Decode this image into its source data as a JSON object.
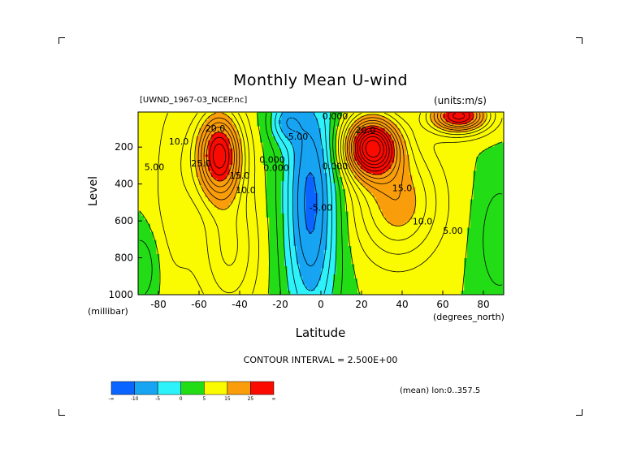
{
  "title": "Monthly Mean U-wind",
  "dataset": "[UWND_1967-03_NCEP.nc]",
  "units": "(units:m/s)",
  "contour_interval": "CONTOUR INTERVAL = 2.500E+00",
  "mean_label": "(mean) lon:0..357.5",
  "chart_data": {
    "type": "contour",
    "title": "Monthly Mean U-wind",
    "xlabel": "Latitude",
    "xunit": "(degrees_north)",
    "ylabel": "Level",
    "yunit": "(millibar)",
    "xlim": [
      -90,
      90
    ],
    "ylim": [
      1000,
      10
    ],
    "xticks": [
      -80,
      -60,
      -40,
      -20,
      0,
      20,
      40,
      60,
      80
    ],
    "yticks": [
      200,
      400,
      600,
      800,
      1000
    ],
    "contour_interval": 2.5,
    "color_levels": [
      -10,
      -5,
      0,
      5,
      15,
      25
    ],
    "colors": [
      "#0a64ff",
      "#17a4f2",
      "#2ef2fa",
      "#22dc16",
      "#fafa00",
      "#fa9d0a",
      "#fa0a00"
    ],
    "colorbar_labels": [
      "-∞",
      "-10",
      "-5",
      "0",
      "5",
      "15",
      "25",
      "∞"
    ],
    "contour_labels": [
      {
        "text": "20.0",
        "x": -52,
        "y": 115
      },
      {
        "text": "10.0",
        "x": -70,
        "y": 185
      },
      {
        "text": "5.00",
        "x": -82,
        "y": 325
      },
      {
        "text": "25.0",
        "x": -59,
        "y": 305
      },
      {
        "text": "15.0",
        "x": -40,
        "y": 370
      },
      {
        "text": "10.0",
        "x": -37,
        "y": 450
      },
      {
        "text": "0.000",
        "x": -22,
        "y": 330
      },
      {
        "text": "0.000",
        "x": -24,
        "y": 285
      },
      {
        "text": "-5.00",
        "x": -12,
        "y": 160
      },
      {
        "text": "0.000",
        "x": 7,
        "y": 50
      },
      {
        "text": "0.000",
        "x": 7,
        "y": 320
      },
      {
        "text": "-5.00",
        "x": 0,
        "y": 545
      },
      {
        "text": "20.0",
        "x": 22,
        "y": 125
      },
      {
        "text": "15.0",
        "x": 40,
        "y": 440
      },
      {
        "text": "10.0",
        "x": 50,
        "y": 620
      },
      {
        "text": "5.00",
        "x": 65,
        "y": 670
      }
    ]
  }
}
